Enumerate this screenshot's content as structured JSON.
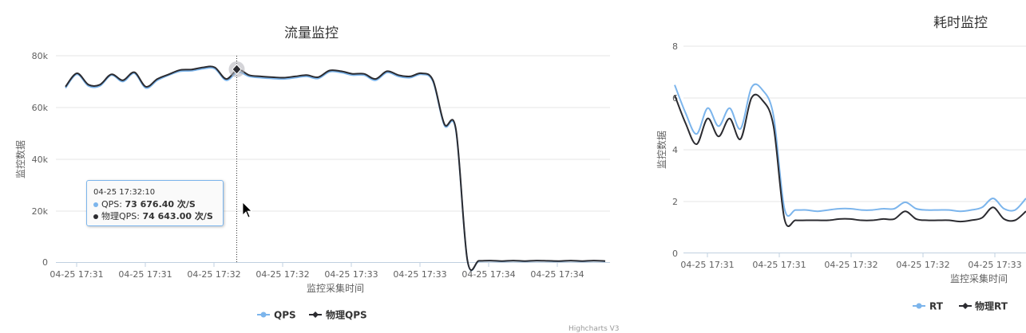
{
  "charts": [
    {
      "title": "流量监控",
      "ylabel": "监控数据",
      "xlabel": "监控采集时间",
      "y_ticks": [
        "0",
        "20k",
        "40k",
        "60k",
        "80k"
      ],
      "x_ticks": [
        "04-25 17:31",
        "04-25 17:31",
        "04-25 17:32",
        "04-25 17:32",
        "04-25 17:33",
        "04-25 17:33",
        "04-25 17:34",
        "04-25 17:34"
      ],
      "legend": [
        "QPS",
        "物理QPS"
      ],
      "tooltip": {
        "time": "04-25 17:32:10",
        "qps_label": "QPS: ",
        "qps_value": "73 676.40 次/S",
        "phys_label": "物理QPS: ",
        "phys_value": "74 643.00 次/S"
      }
    },
    {
      "title": "耗时监控",
      "ylabel": "监控数据",
      "xlabel": "监控采集时间",
      "y_ticks": [
        "0",
        "2",
        "4",
        "6",
        "8"
      ],
      "x_ticks": [
        "04-25 17:31",
        "04-25 17:31",
        "04-25 17:32",
        "04-25 17:32",
        "04-25 17:33"
      ],
      "legend": [
        "RT",
        "物理RT"
      ]
    }
  ],
  "colors": {
    "series1": "#7cb5ec",
    "series2": "#2b2b30"
  },
  "credit": "Highcharts V3",
  "chart_data": [
    {
      "type": "line",
      "title": "流量监控",
      "xlabel": "监控采集时间",
      "ylabel": "监控数据",
      "ylim": [
        0,
        80000
      ],
      "series": [
        {
          "name": "QPS",
          "values": [
            67500,
            72800,
            68300,
            68300,
            72500,
            70000,
            73200,
            67500,
            70500,
            72500,
            74000,
            74200,
            75000,
            75000,
            70500,
            73676,
            72000,
            71500,
            71200,
            71000,
            71500,
            72000,
            71200,
            73800,
            73500,
            72500,
            72500,
            70500,
            73500,
            72000,
            71500,
            72800,
            70000,
            53000,
            51000,
            600,
            400,
            500,
            300,
            500,
            300,
            500,
            400,
            300,
            500,
            300,
            500,
            300
          ]
        },
        {
          "name": "物理QPS",
          "values": [
            68000,
            73200,
            68800,
            68800,
            72800,
            70500,
            73600,
            68000,
            71000,
            72800,
            74500,
            74700,
            75500,
            75500,
            71000,
            74643,
            72500,
            72000,
            71700,
            71500,
            72000,
            72500,
            71700,
            74300,
            74000,
            73000,
            73000,
            71000,
            74000,
            72500,
            72000,
            73200,
            70500,
            53500,
            51500,
            700,
            500,
            600,
            400,
            600,
            400,
            600,
            500,
            400,
            600,
            400,
            600,
            400
          ]
        }
      ]
    },
    {
      "type": "line",
      "title": "耗时监控",
      "xlabel": "监控采集时间",
      "ylabel": "监控数据",
      "ylim": [
        0,
        8
      ],
      "series": [
        {
          "name": "RT",
          "values": [
            6.5,
            5.4,
            4.6,
            5.6,
            4.9,
            5.6,
            4.8,
            6.4,
            6.3,
            5.3,
            1.7,
            1.65,
            1.65,
            1.6,
            1.65,
            1.7,
            1.7,
            1.65,
            1.65,
            1.7,
            1.7,
            1.95,
            1.7,
            1.65,
            1.65,
            1.65,
            1.6,
            1.65,
            1.75,
            2.1,
            1.7,
            1.65,
            2.1
          ]
        },
        {
          "name": "物理RT",
          "values": [
            6.1,
            5.0,
            4.2,
            5.2,
            4.5,
            5.2,
            4.4,
            6.0,
            5.9,
            4.9,
            1.3,
            1.25,
            1.25,
            1.25,
            1.25,
            1.3,
            1.3,
            1.25,
            1.25,
            1.3,
            1.3,
            1.6,
            1.3,
            1.25,
            1.25,
            1.25,
            1.2,
            1.25,
            1.35,
            1.75,
            1.3,
            1.25,
            1.6
          ]
        }
      ]
    }
  ]
}
